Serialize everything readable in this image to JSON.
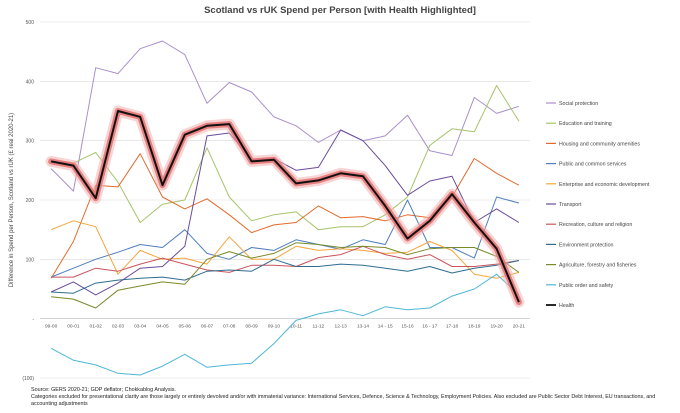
{
  "chart_data": {
    "type": "line",
    "title": "Scotland vs rUK Spend per Person [with Health Highlighted]",
    "xlabel": "",
    "ylabel": "Difference in Spend per Person, Scotland vs rUK (£ real 2020-21)",
    "ylim": [
      -100,
      500
    ],
    "yticks": [
      -100,
      0,
      100,
      200,
      300,
      400,
      500
    ],
    "ytick_labels": [
      "(100)",
      "-",
      "100",
      "200",
      "300",
      "400",
      "500"
    ],
    "grid": true,
    "legend_position": "right",
    "categories": [
      "99-00",
      "00-01",
      "01-02",
      "02-03",
      "03-04",
      "04-05",
      "05-06",
      "06-07",
      "07-08",
      "08-09",
      "09-10",
      "10-11",
      "11-12",
      "12-13",
      "13-14",
      "14 - 15",
      "15-16",
      "16 - 17",
      "17-18",
      "18-19",
      "19-20",
      "20-21"
    ],
    "highlight_series": "Health",
    "series": [
      {
        "name": "Social protection",
        "color": "#a990cc",
        "values": [
          253,
          215,
          423,
          413,
          455,
          468,
          445,
          363,
          398,
          382,
          340,
          325,
          297,
          318,
          300,
          308,
          343,
          283,
          275,
          373,
          346,
          358
        ]
      },
      {
        "name": "Education and training",
        "color": "#a7c46b",
        "values": [
          265,
          262,
          280,
          230,
          162,
          193,
          200,
          288,
          205,
          165,
          175,
          180,
          150,
          155,
          155,
          175,
          205,
          292,
          320,
          315,
          393,
          333
        ]
      },
      {
        "name": "Housing and community amenities",
        "color": "#e26a2c",
        "values": [
          68,
          130,
          225,
          222,
          278,
          205,
          185,
          202,
          175,
          145,
          158,
          162,
          190,
          170,
          172,
          165,
          175,
          170,
          205,
          270,
          245,
          225
        ]
      },
      {
        "name": "Public and common services",
        "color": "#4f7fbf",
        "values": [
          70,
          85,
          100,
          112,
          125,
          120,
          150,
          110,
          100,
          120,
          115,
          133,
          125,
          117,
          133,
          125,
          200,
          120,
          120,
          102,
          205,
          195
        ]
      },
      {
        "name": "Enterprise and economic development",
        "color": "#f5a53b",
        "values": [
          150,
          165,
          155,
          75,
          115,
          100,
          102,
          92,
          138,
          100,
          100,
          122,
          115,
          118,
          115,
          110,
          112,
          130,
          115,
          75,
          68,
          78
        ]
      },
      {
        "name": "Transport",
        "color": "#6a4c9c",
        "values": [
          45,
          62,
          40,
          60,
          85,
          88,
          122,
          308,
          313,
          268,
          270,
          250,
          255,
          318,
          300,
          258,
          208,
          232,
          240,
          162,
          185,
          162
        ]
      },
      {
        "name": "Recreation, culture and religion",
        "color": "#c9545c",
        "values": [
          70,
          70,
          85,
          80,
          92,
          102,
          92,
          82,
          78,
          90,
          90,
          88,
          103,
          108,
          122,
          108,
          100,
          108,
          88,
          88,
          92,
          98
        ]
      },
      {
        "name": "Environment protection",
        "color": "#2f6d8f",
        "values": [
          45,
          43,
          60,
          65,
          68,
          70,
          65,
          80,
          82,
          80,
          100,
          88,
          88,
          92,
          90,
          85,
          80,
          88,
          77,
          85,
          90,
          98
        ]
      },
      {
        "name": "Agriculture, forestry and fisheries",
        "color": "#7a8a2a",
        "values": [
          37,
          33,
          18,
          48,
          55,
          62,
          58,
          100,
          113,
          102,
          110,
          128,
          125,
          120,
          122,
          120,
          108,
          118,
          120,
          120,
          105,
          78
        ]
      },
      {
        "name": "Public order and safety",
        "color": "#4fb7d8",
        "values": [
          -50,
          -70,
          -78,
          -92,
          -95,
          -80,
          -60,
          -82,
          -78,
          -75,
          -42,
          -3,
          8,
          15,
          5,
          20,
          15,
          18,
          38,
          50,
          75,
          40
        ]
      },
      {
        "name": "Health",
        "color": "#111111",
        "values": [
          265,
          258,
          203,
          350,
          340,
          225,
          310,
          325,
          328,
          265,
          268,
          228,
          233,
          245,
          240,
          190,
          135,
          165,
          210,
          162,
          118,
          28
        ]
      }
    ]
  },
  "source_note": "Source: GERS 2020-21; GDP deflator; Chokkablog Analysis.",
  "categories_note": "Categories excluded for presentational clarity are those largely or entirely devolved and/or with immaterial variance: International Services, Defence, Science & Technology, Employment Policies. Also excluded are Public Sector Debt Interest, EU transactions, and accounting adjustments"
}
